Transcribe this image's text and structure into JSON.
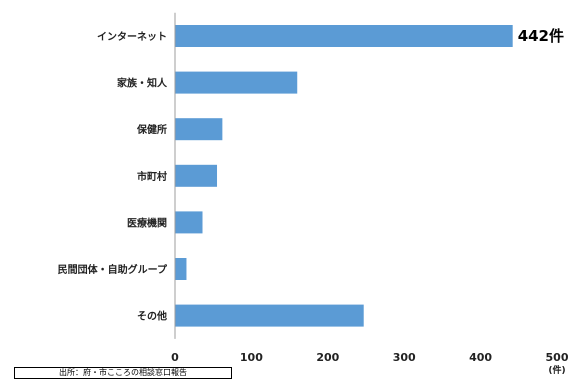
{
  "chart_data": {
    "type": "bar",
    "orientation": "horizontal",
    "categories": [
      "インターネット",
      "家族・知人",
      "保健所",
      "市町村",
      "医療機関",
      "民間団体・自助グループ",
      "その他"
    ],
    "values": [
      442,
      160,
      62,
      55,
      36,
      15,
      247
    ],
    "data_labels": [
      {
        "category": "インターネット",
        "text": "442件"
      }
    ],
    "xlim": [
      0,
      500
    ],
    "x_ticks": [
      "0",
      "100",
      "200",
      "300",
      "400",
      "500"
    ],
    "x_unit": "(件)",
    "grid": false,
    "legend": "none",
    "bar_color": "#5B9BD5"
  },
  "source_note": "出所：府・市こころの相談窓口報告"
}
